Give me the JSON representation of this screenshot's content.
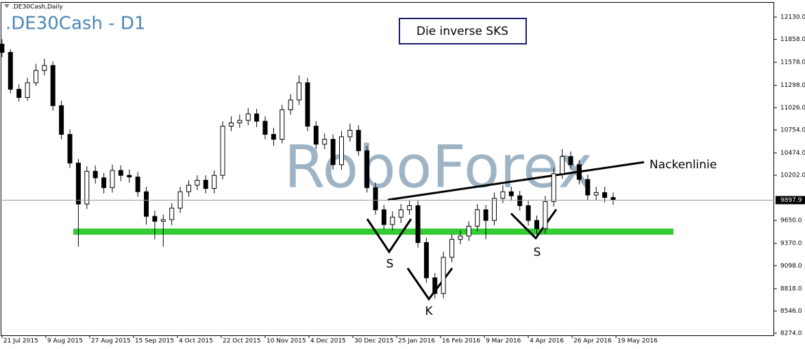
{
  "chart_data": {
    "type": "candlestick",
    "title": ".DE30Cash,Daily",
    "symbol_label": ".DE30Cash - D1",
    "watermark": "RoboForex",
    "annotations": [
      "Die inverse SKS",
      "Nackenlinie",
      "S",
      "K",
      "S"
    ],
    "last_price": 9897.9,
    "up_color": "#ffffff",
    "down_color": "#000000",
    "wick_color": "#000000",
    "x": [
      0,
      3,
      6,
      9,
      12,
      15,
      18,
      21,
      24,
      27,
      30,
      33,
      36,
      39,
      42,
      45,
      48,
      51,
      54,
      57,
      60,
      63,
      66,
      69,
      72,
      75,
      78,
      81,
      84,
      87,
      90,
      93,
      96,
      99,
      102,
      105,
      108,
      111,
      114,
      117,
      120,
      123,
      126,
      129,
      132,
      135,
      138,
      141,
      144,
      147,
      150,
      153,
      156,
      159,
      162,
      165,
      168,
      171,
      174,
      177,
      180,
      183,
      186,
      189,
      192,
      195,
      198,
      201,
      204,
      207,
      210,
      213,
      216
    ],
    "open": [
      11800,
      11700,
      11250,
      11150,
      11330,
      11480,
      11540,
      11050,
      10700,
      10350,
      9850,
      10250,
      10170,
      10050,
      10260,
      10200,
      10180,
      10000,
      9700,
      9640,
      9660,
      9800,
      10000,
      10080,
      10140,
      10040,
      10200,
      10800,
      10840,
      10870,
      10950,
      10860,
      10700,
      10640,
      11000,
      11120,
      11330,
      10800,
      10580,
      10640,
      10330,
      10670,
      10750,
      10500,
      10050,
      9780,
      9600,
      9690,
      9780,
      9830,
      9380,
      8950,
      8760,
      9200,
      9420,
      9460,
      9580,
      9780,
      9650,
      9920,
      10000,
      9950,
      9830,
      9650,
      9550,
      9880,
      10220,
      10430,
      10330,
      10150,
      9960,
      9990,
      9930
    ],
    "high": [
      11860,
      11740,
      11310,
      11390,
      11560,
      11620,
      11590,
      11110,
      10760,
      10400,
      10310,
      10320,
      10230,
      10330,
      10320,
      10270,
      10240,
      10060,
      9770,
      9720,
      9860,
      10060,
      10140,
      10200,
      10200,
      10260,
      10860,
      10920,
      10940,
      11020,
      11010,
      10920,
      10780,
      11060,
      11190,
      11420,
      11390,
      10860,
      10710,
      10700,
      10740,
      10830,
      10810,
      10560,
      10110,
      9840,
      9760,
      9850,
      9890,
      9890,
      9440,
      9010,
      9270,
      9480,
      9530,
      9640,
      9850,
      9840,
      9990,
      10080,
      10060,
      10010,
      9890,
      9710,
      9950,
      10290,
      10520,
      10490,
      10390,
      10210,
      10060,
      10060,
      9990
    ],
    "low": [
      11640,
      11200,
      11100,
      11110,
      11290,
      11420,
      10990,
      10640,
      10290,
      9330,
      9790,
      10100,
      9980,
      9990,
      10130,
      10110,
      9940,
      9600,
      9420,
      9330,
      9590,
      9740,
      9940,
      10020,
      9980,
      9980,
      10150,
      10740,
      10780,
      10810,
      10790,
      10640,
      10560,
      10590,
      10940,
      11060,
      10740,
      10520,
      10520,
      10270,
      10270,
      10610,
      10440,
      9990,
      9720,
      9540,
      9530,
      9620,
      9720,
      9320,
      8890,
      8700,
      8700,
      9140,
      9360,
      9400,
      9520,
      9420,
      9590,
      9860,
      9890,
      9770,
      9590,
      9480,
      9490,
      9820,
      10160,
      10270,
      10090,
      9900,
      9900,
      9870,
      9840
    ],
    "close": [
      11700,
      11250,
      11150,
      11330,
      11480,
      11540,
      11050,
      10700,
      10350,
      9850,
      10250,
      10170,
      10050,
      10260,
      10200,
      10180,
      10000,
      9700,
      9640,
      9660,
      9800,
      10000,
      10080,
      10140,
      10040,
      10200,
      10800,
      10840,
      10870,
      10950,
      10860,
      10700,
      10640,
      11000,
      11120,
      11330,
      10800,
      10580,
      10640,
      10330,
      10670,
      10750,
      10500,
      10050,
      9780,
      9600,
      9690,
      9780,
      9830,
      9380,
      8950,
      8760,
      9200,
      9420,
      9460,
      9580,
      9780,
      9650,
      9920,
      10000,
      9950,
      9830,
      9650,
      9550,
      9880,
      10220,
      10430,
      10330,
      10150,
      9960,
      9990,
      9930,
      9898
    ],
    "xlim": [
      -0.7,
      272.9
    ],
    "xticks": [
      {
        "value": 0,
        "label": "21 Jul 2015"
      },
      {
        "value": 15.5,
        "label": "9 Aug 2015"
      },
      {
        "value": 31,
        "label": "27 Aug 2015"
      },
      {
        "value": 46.5,
        "label": "15 Sep 2015"
      },
      {
        "value": 62,
        "label": "4 Oct 2015"
      },
      {
        "value": 77.5,
        "label": "22 Oct 2015"
      },
      {
        "value": 93,
        "label": "10 Nov 2015"
      },
      {
        "value": 108.5,
        "label": "4 Dec 2015"
      },
      {
        "value": 124,
        "label": "30 Dec 2015"
      },
      {
        "value": 139.5,
        "label": "25 Jan 2016"
      },
      {
        "value": 155,
        "label": "16 Feb 2016"
      },
      {
        "value": 170.5,
        "label": "9 Mar 2016"
      },
      {
        "value": 186,
        "label": "4 Apr 2016"
      },
      {
        "value": 201.5,
        "label": "26 Apr 2016"
      },
      {
        "value": 217,
        "label": "19 May 2016"
      }
    ],
    "ylim": [
      8249,
      12297
    ],
    "yticks": [
      {
        "value": 8274,
        "label": "8274.0"
      },
      {
        "value": 8546,
        "label": "8546.0"
      },
      {
        "value": 8818,
        "label": "8818.0"
      },
      {
        "value": 9098,
        "label": "9098.0"
      },
      {
        "value": 9370,
        "label": "9370.0"
      },
      {
        "value": 9650,
        "label": "9650.0"
      },
      {
        "value": 10202,
        "label": "10202.0"
      },
      {
        "value": 10474,
        "label": "10474.0"
      },
      {
        "value": 10754,
        "label": "10754.0"
      },
      {
        "value": 11026,
        "label": "11026.0"
      },
      {
        "value": 11298,
        "label": "11298.0"
      },
      {
        "value": 11578,
        "label": "11578.0"
      },
      {
        "value": 11858,
        "label": "11858.0"
      },
      {
        "value": 12130,
        "label": "12130.0"
      }
    ]
  }
}
